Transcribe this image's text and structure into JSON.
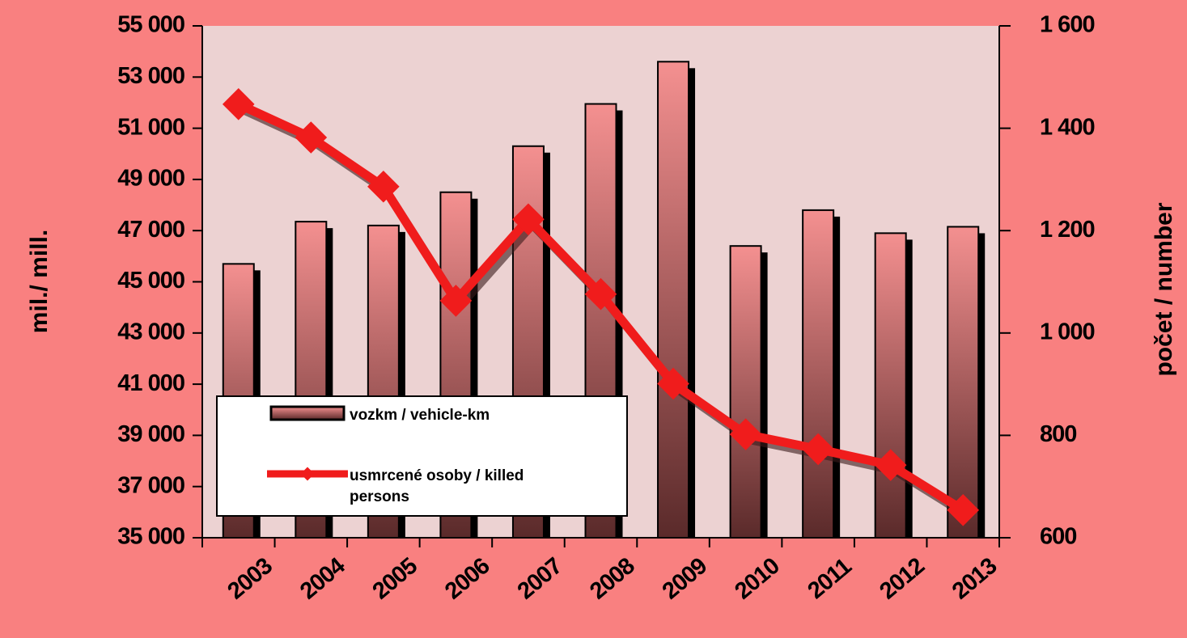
{
  "chart_data": {
    "type": "bar_line",
    "categories": [
      "2003",
      "2004",
      "2005",
      "2006",
      "2007",
      "2008",
      "2009",
      "2010",
      "2011",
      "2012",
      "2013"
    ],
    "ylabel": "mil./ mill.",
    "y2label": "počet / number",
    "ylim": [
      35000,
      55000
    ],
    "yticks": [
      {
        "value": 35000,
        "label": "35 000"
      },
      {
        "value": 37000,
        "label": "37 000"
      },
      {
        "value": 39000,
        "label": "39 000"
      },
      {
        "value": 41000,
        "label": "41 000"
      },
      {
        "value": 43000,
        "label": "43 000"
      },
      {
        "value": 45000,
        "label": "45 000"
      },
      {
        "value": 47000,
        "label": "47 000"
      },
      {
        "value": 49000,
        "label": "49 000"
      },
      {
        "value": 51000,
        "label": "51 000"
      },
      {
        "value": 53000,
        "label": "53 000"
      },
      {
        "value": 55000,
        "label": "55 000"
      }
    ],
    "y2lim": [
      600,
      1600
    ],
    "y2ticks": [
      600,
      800,
      {
        "value": 1000,
        "label": "1 000"
      },
      {
        "value": 1200,
        "label": "1 200"
      },
      {
        "value": 1400,
        "label": "1 400"
      },
      {
        "value": 1600,
        "label": "1 600"
      }
    ],
    "series": [
      {
        "name": "vozkm / vehicle-km",
        "type": "bar",
        "color": "#f08a8a",
        "values": [
          45700,
          47350,
          47200,
          48500,
          50300,
          51950,
          53600,
          46400,
          47800,
          46900,
          47150
        ]
      },
      {
        "name": "usmrcené osoby / killed persons",
        "type": "line",
        "axis": "y2",
        "color": "#f01c1c",
        "values": [
          1447,
          1382,
          1286,
          1063,
          1222,
          1076,
          901,
          802,
          773,
          742,
          654
        ]
      }
    ]
  }
}
